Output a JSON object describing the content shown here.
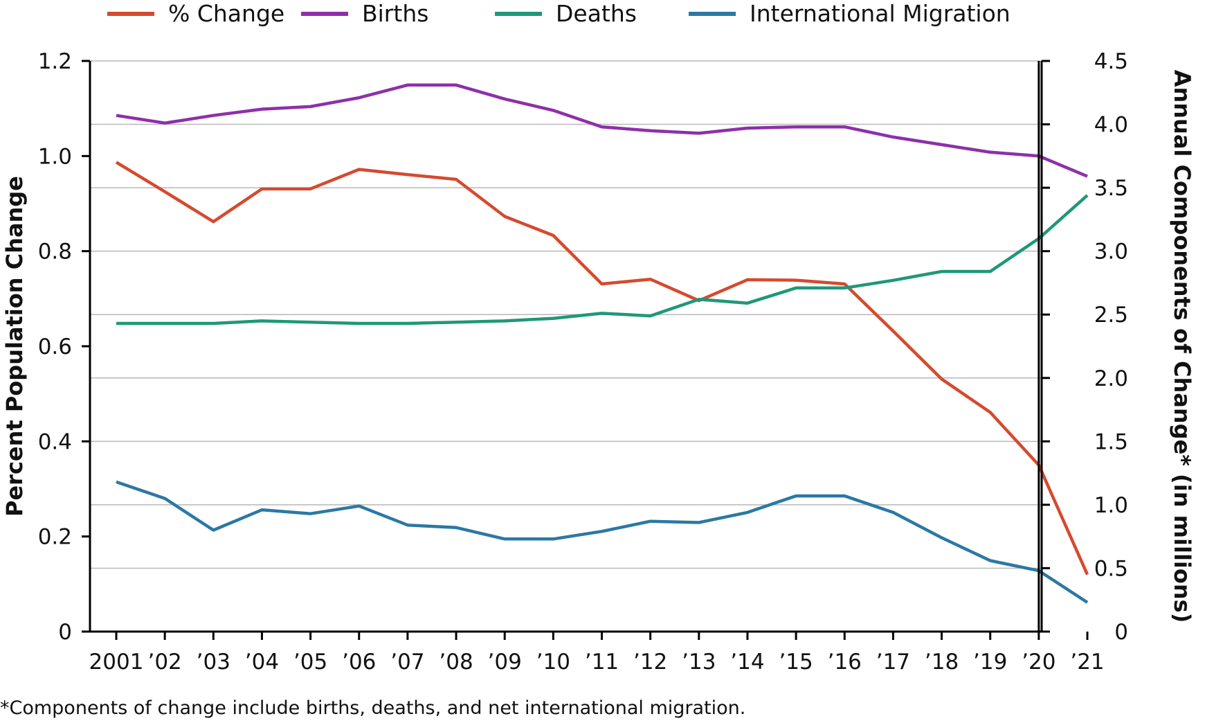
{
  "chart_data": {
    "type": "line",
    "footnote": "*Components of change include births, deaths, and net international migration.",
    "x_tick_labels": [
      "2001",
      "’02",
      "’03",
      "’04",
      "’05",
      "’06",
      "’07",
      "’08",
      "’09",
      "’10",
      "’11",
      "’12",
      "’13",
      "’14",
      "’15",
      "’16",
      "’17",
      "’18",
      "’19",
      "’20",
      "’21"
    ],
    "y_left": {
      "label": "Percent Population Change",
      "range": [
        0,
        1.2
      ],
      "ticks": [
        0,
        0.2,
        0.4,
        0.6,
        0.8,
        1.0,
        1.2
      ],
      "tick_labels": [
        "0",
        "0.2",
        "0.4",
        "0.6",
        "0.8",
        "1.0",
        "1.2"
      ]
    },
    "y_right": {
      "label": "Annual Components of Change* (in millions)",
      "range": [
        0,
        4.5
      ],
      "ticks": [
        0,
        0.5,
        1.0,
        1.5,
        2.0,
        2.5,
        3.0,
        3.5,
        4.0,
        4.5
      ],
      "tick_labels": [
        "0",
        "0.5",
        "1.0",
        "1.5",
        "2.0",
        "2.5",
        "3.0",
        "3.5",
        "4.0",
        "4.5"
      ]
    },
    "grid": "horizontal",
    "legend_position": "top",
    "reference_line_at": "’20",
    "series": [
      {
        "name": "% Change",
        "axis": "left",
        "color": "#d54a2f",
        "points": [
          [
            "2001",
            0.987
          ],
          [
            "’02",
            0.925
          ],
          [
            "’03",
            0.862
          ],
          [
            "’04",
            0.931
          ],
          [
            "’05",
            0.931
          ],
          [
            "’06",
            0.972
          ],
          [
            "’07",
            0.961
          ],
          [
            "’08",
            0.951
          ],
          [
            "’09",
            0.873
          ],
          [
            "’10",
            0.833
          ],
          [
            "’11",
            0.731
          ],
          [
            "’12",
            0.741
          ],
          [
            "’13",
            0.696
          ],
          [
            "’14",
            0.74
          ],
          [
            "’15",
            0.739
          ],
          [
            "’16",
            0.731
          ],
          [
            "’17",
            0.632
          ],
          [
            "’18",
            0.531
          ],
          [
            "’19",
            0.461
          ],
          [
            "’20",
            0.35
          ],
          [
            "’21",
            0.12
          ]
        ]
      },
      {
        "name": "Births",
        "axis": "right",
        "color": "#8e2faa",
        "points": [
          [
            "2001",
            4.07
          ],
          [
            "’02",
            4.01
          ],
          [
            "’03",
            4.07
          ],
          [
            "’04",
            4.12
          ],
          [
            "’05",
            4.14
          ],
          [
            "’06",
            4.21
          ],
          [
            "’07",
            4.31
          ],
          [
            "’08",
            4.31
          ],
          [
            "’09",
            4.2
          ],
          [
            "’10",
            4.11
          ],
          [
            "’11",
            3.98
          ],
          [
            "’12",
            3.95
          ],
          [
            "’13",
            3.93
          ],
          [
            "’14",
            3.97
          ],
          [
            "’15",
            3.98
          ],
          [
            "’16",
            3.98
          ],
          [
            "’17",
            3.9
          ],
          [
            "’18",
            3.84
          ],
          [
            "’19",
            3.78
          ],
          [
            "’20",
            3.75
          ],
          [
            "’21",
            3.59
          ]
        ]
      },
      {
        "name": "Deaths",
        "axis": "right",
        "color": "#1f9878",
        "points": [
          [
            "2001",
            2.43
          ],
          [
            "’02",
            2.43
          ],
          [
            "’03",
            2.43
          ],
          [
            "’04",
            2.45
          ],
          [
            "’05",
            2.44
          ],
          [
            "’06",
            2.43
          ],
          [
            "’07",
            2.43
          ],
          [
            "’08",
            2.44
          ],
          [
            "’09",
            2.45
          ],
          [
            "’10",
            2.47
          ],
          [
            "’11",
            2.51
          ],
          [
            "’12",
            2.49
          ],
          [
            "’13",
            2.62
          ],
          [
            "’14",
            2.59
          ],
          [
            "’15",
            2.71
          ],
          [
            "’16",
            2.71
          ],
          [
            "’17",
            2.77
          ],
          [
            "’18",
            2.84
          ],
          [
            "’19",
            2.84
          ],
          [
            "’20",
            3.1
          ],
          [
            "’21",
            3.44
          ]
        ]
      },
      {
        "name": "International Migration",
        "axis": "right",
        "color": "#2b78a4",
        "points": [
          [
            "2001",
            1.18
          ],
          [
            "’02",
            1.05
          ],
          [
            "’03",
            0.8
          ],
          [
            "’04",
            0.96
          ],
          [
            "’05",
            0.93
          ],
          [
            "’06",
            0.99
          ],
          [
            "’07",
            0.84
          ],
          [
            "’08",
            0.82
          ],
          [
            "’09",
            0.73
          ],
          [
            "’10",
            0.73
          ],
          [
            "’11",
            0.79
          ],
          [
            "’12",
            0.87
          ],
          [
            "’13",
            0.86
          ],
          [
            "’14",
            0.94
          ],
          [
            "’15",
            1.07
          ],
          [
            "’16",
            1.07
          ],
          [
            "’17",
            0.94
          ],
          [
            "’18",
            0.74
          ],
          [
            "’19",
            0.56
          ],
          [
            "’20",
            0.48
          ],
          [
            "’21",
            0.23
          ]
        ]
      }
    ]
  }
}
